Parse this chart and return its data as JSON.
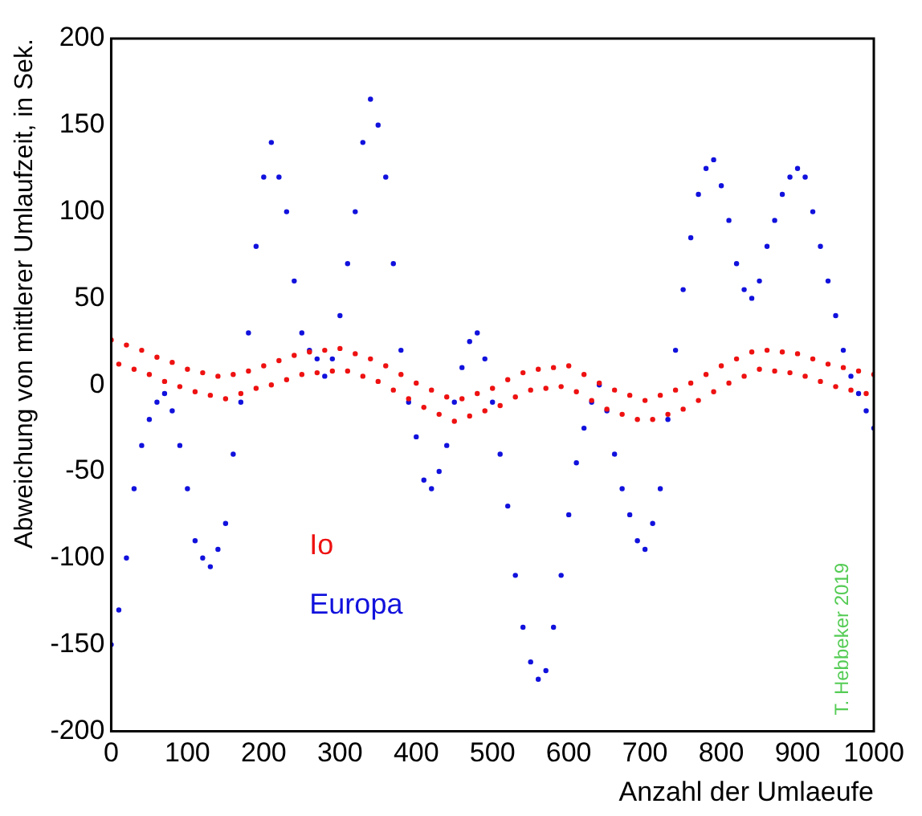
{
  "chart_data": {
    "type": "scatter",
    "xlabel": "Anzahl der Umlaeufe",
    "ylabel": "Abweichung von mittlerer Umlaufzeit, in Sek.",
    "x": [
      0,
      10,
      20,
      30,
      40,
      50,
      60,
      70,
      80,
      90,
      100,
      110,
      120,
      130,
      140,
      150,
      160,
      170,
      180,
      190,
      200,
      210,
      220,
      230,
      240,
      250,
      260,
      270,
      280,
      290,
      300,
      310,
      320,
      330,
      340,
      350,
      360,
      370,
      380,
      390,
      400,
      410,
      420,
      430,
      440,
      450,
      460,
      470,
      480,
      490,
      500,
      510,
      520,
      530,
      540,
      550,
      560,
      570,
      580,
      590,
      600,
      610,
      620,
      630,
      640,
      650,
      660,
      670,
      680,
      690,
      700,
      710,
      720,
      730,
      740,
      750,
      760,
      770,
      780,
      790,
      800,
      810,
      820,
      830,
      840,
      850,
      860,
      870,
      880,
      890,
      900,
      910,
      920,
      930,
      940,
      950,
      960,
      970,
      980,
      990,
      1000
    ],
    "series": [
      {
        "name": "Io",
        "color": "#ee1111",
        "values": [
          26,
          12,
          23,
          9,
          20,
          6,
          16,
          2,
          13,
          -1,
          9,
          -4,
          7,
          -6,
          5,
          -8,
          6,
          -5,
          8,
          -2,
          11,
          0,
          14,
          3,
          17,
          6,
          19,
          7,
          20,
          8,
          21,
          8,
          18,
          5,
          15,
          2,
          11,
          -3,
          6,
          -8,
          1,
          -13,
          -3,
          -17,
          -7,
          -21,
          -8,
          -18,
          -5,
          -15,
          -2,
          -12,
          3,
          -7,
          7,
          -3,
          9,
          -2,
          10,
          -1,
          11,
          -4,
          6,
          -9,
          1,
          -14,
          -3,
          -17,
          -6,
          -20,
          -9,
          -20,
          -6,
          -17,
          -3,
          -14,
          1,
          -9,
          6,
          -4,
          11,
          1,
          15,
          5,
          19,
          9,
          20,
          8,
          19,
          7,
          18,
          5,
          15,
          2,
          12,
          -1,
          10,
          -3,
          8,
          -5,
          6
        ]
      },
      {
        "name": "Europa",
        "color": "#1111dd",
        "values": [
          -150,
          -130,
          -100,
          -60,
          -35,
          -20,
          -10,
          -5,
          -15,
          -35,
          -60,
          -90,
          -100,
          -105,
          -95,
          -80,
          -40,
          -10,
          30,
          80,
          120,
          140,
          120,
          100,
          60,
          30,
          20,
          15,
          5,
          15,
          40,
          70,
          100,
          140,
          165,
          150,
          120,
          70,
          20,
          -10,
          -30,
          -55,
          -60,
          -50,
          -35,
          -10,
          10,
          25,
          30,
          15,
          -10,
          -40,
          -70,
          -110,
          -140,
          -160,
          -170,
          -165,
          -140,
          -110,
          -75,
          -45,
          -25,
          -10,
          0,
          -15,
          -40,
          -60,
          -75,
          -90,
          -95,
          -80,
          -60,
          -20,
          20,
          55,
          85,
          110,
          125,
          130,
          115,
          95,
          70,
          55,
          50,
          60,
          80,
          95,
          110,
          120,
          125,
          120,
          100,
          80,
          60,
          40,
          20,
          5,
          -5,
          -15,
          -25
        ]
      }
    ],
    "xlim": [
      0,
      1000
    ],
    "xticks": [
      0,
      100,
      200,
      300,
      400,
      500,
      600,
      700,
      800,
      900,
      1000
    ],
    "ylim": [
      -200,
      200
    ],
    "yticks": [
      -200,
      -150,
      -100,
      -50,
      0,
      50,
      100,
      150,
      200
    ],
    "grid": false,
    "legend": false,
    "marker": "circle",
    "annotations": [
      "T. Hebbeker 2019"
    ]
  }
}
